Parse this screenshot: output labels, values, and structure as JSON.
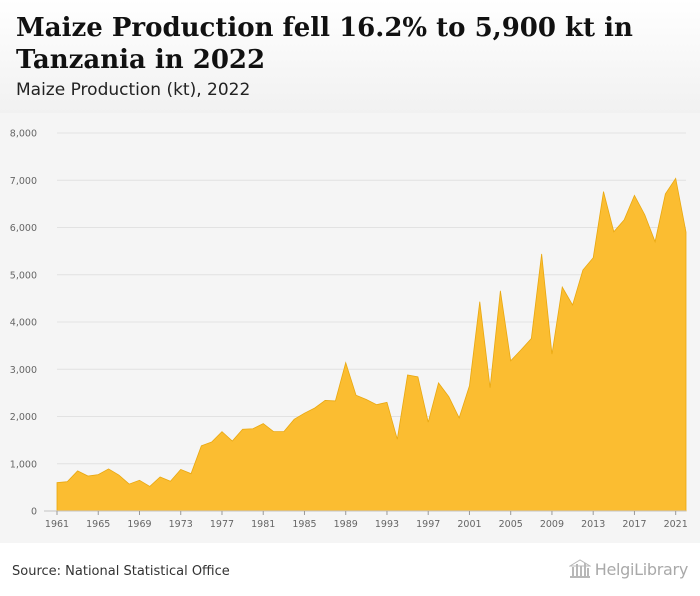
{
  "header": {
    "title": "Maize Production fell 16.2% to 5,900 kt in Tanzania in 2022",
    "subtitle": "Maize Production (kt), 2022"
  },
  "footer": {
    "source": "Source: National Statistical Office",
    "logo_text": "HelgiLibrary",
    "logo_icon": "library-building-icon"
  },
  "colors": {
    "area_fill": "#fbbd31",
    "area_stroke": "#e9a810",
    "grid": "#e2e2e2",
    "chart_bg": "#f5f5f5"
  },
  "chart_data": {
    "type": "area",
    "title": "",
    "xlabel": "",
    "ylabel": "",
    "ylim": [
      0,
      8000
    ],
    "yticks": [
      0,
      1000,
      2000,
      3000,
      4000,
      5000,
      6000,
      7000,
      8000
    ],
    "ytick_labels": [
      "0",
      "1,000",
      "2,000",
      "3,000",
      "4,000",
      "5,000",
      "6,000",
      "7,000",
      "8,000"
    ],
    "xticks": [
      1961,
      1965,
      1969,
      1973,
      1977,
      1981,
      1985,
      1989,
      1993,
      1997,
      2001,
      2005,
      2009,
      2013,
      2017,
      2021
    ],
    "xlim": [
      1961,
      2022
    ],
    "grid": true,
    "series": [
      {
        "x": [
          1961,
          1962,
          1963,
          1964,
          1965,
          1966,
          1967,
          1968,
          1969,
          1970,
          1971,
          1972,
          1973,
          1974,
          1975,
          1976,
          1977,
          1978,
          1979,
          1980,
          1981,
          1982,
          1983,
          1984,
          1985,
          1986,
          1987,
          1988,
          1989,
          1990,
          1991,
          1992,
          1993,
          1994,
          1995,
          1996,
          1997,
          1998,
          1999,
          2000,
          2001,
          2002,
          2003,
          2004,
          2005,
          2006,
          2007,
          2008,
          2009,
          2010,
          2011,
          2012,
          2013,
          2014,
          2015,
          2016,
          2017,
          2018,
          2019,
          2020,
          2021,
          2022
        ],
        "values": [
          600,
          620,
          850,
          740,
          770,
          890,
          760,
          570,
          650,
          520,
          720,
          630,
          880,
          790,
          1380,
          1460,
          1680,
          1480,
          1730,
          1740,
          1850,
          1680,
          1680,
          1940,
          2070,
          2180,
          2340,
          2330,
          3140,
          2450,
          2360,
          2250,
          2300,
          1520,
          2880,
          2840,
          1880,
          2710,
          2420,
          1970,
          2650,
          4430,
          2610,
          4660,
          3180,
          3410,
          3650,
          5440,
          3320,
          4740,
          4360,
          5100,
          5360,
          6760,
          5910,
          6160,
          6680,
          6270,
          5700,
          6710,
          7040,
          5900
        ]
      }
    ]
  }
}
